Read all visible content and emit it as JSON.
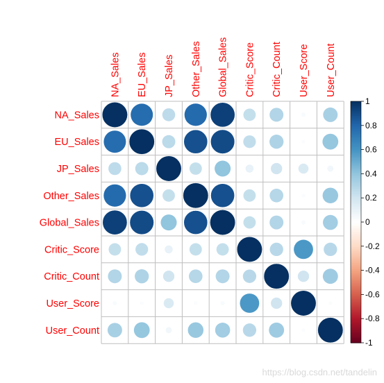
{
  "chart_data": {
    "type": "heatmap",
    "style": "corrplot-circle",
    "variables": [
      "NA_Sales",
      "EU_Sales",
      "JP_Sales",
      "Other_Sales",
      "Global_Sales",
      "Critic_Score",
      "Critic_Count",
      "User_Score",
      "User_Count"
    ],
    "matrix": [
      [
        1.0,
        0.77,
        0.26,
        0.78,
        0.94,
        0.24,
        0.3,
        0.03,
        0.33
      ],
      [
        0.77,
        1.0,
        0.27,
        0.88,
        0.9,
        0.25,
        0.31,
        0.02,
        0.39
      ],
      [
        0.26,
        0.27,
        1.0,
        0.24,
        0.4,
        0.1,
        0.2,
        0.16,
        0.06
      ],
      [
        0.78,
        0.88,
        0.24,
        1.0,
        0.88,
        0.24,
        0.29,
        0.02,
        0.38
      ],
      [
        0.94,
        0.9,
        0.4,
        0.88,
        1.0,
        0.24,
        0.3,
        0.03,
        0.35
      ],
      [
        0.24,
        0.25,
        0.1,
        0.24,
        0.24,
        1.0,
        0.28,
        0.58,
        0.28
      ],
      [
        0.3,
        0.31,
        0.2,
        0.29,
        0.3,
        0.28,
        1.0,
        0.2,
        0.36
      ],
      [
        0.03,
        0.02,
        0.16,
        0.02,
        0.03,
        0.58,
        0.2,
        1.0,
        0.02
      ],
      [
        0.33,
        0.39,
        0.06,
        0.38,
        0.35,
        0.28,
        0.36,
        0.02,
        1.0
      ]
    ],
    "colorbar": {
      "range": [
        -1,
        1
      ],
      "ticks": [
        "1",
        "0.8",
        "0.6",
        "0.4",
        "0.2",
        "0",
        "-0.2",
        "-0.4",
        "-0.6",
        "-0.8",
        "-1"
      ]
    },
    "colors": {
      "label": "#ff0000",
      "grid": "#bebebe",
      "negative_strong": "#67001f",
      "positive_strong": "#053061"
    }
  },
  "watermark": "https://blog.csdn.net/tandelin"
}
